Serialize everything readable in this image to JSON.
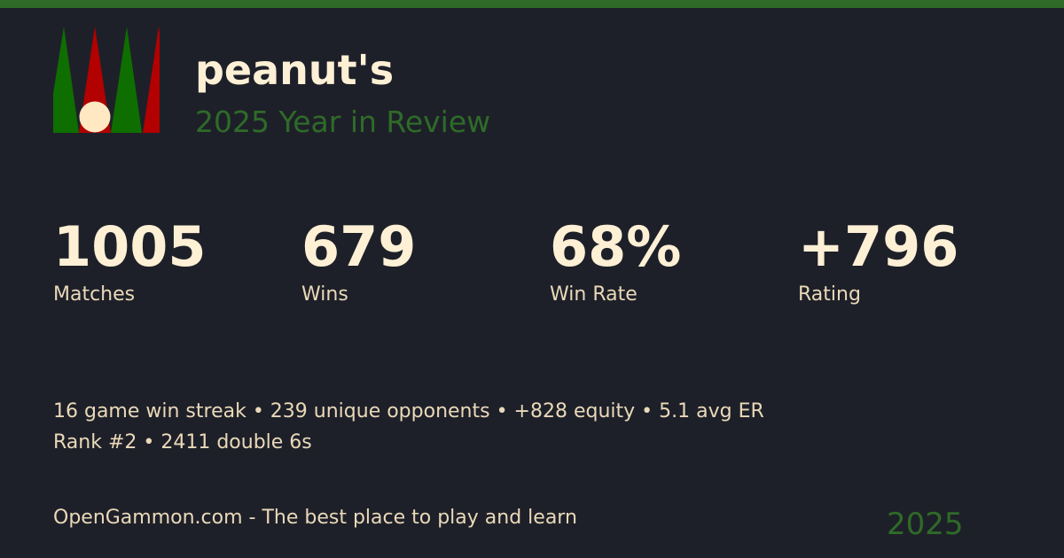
{
  "colors": {
    "accent_green": "#2e6b28",
    "background": "#1e2029",
    "text": "#fdf0d5",
    "logo_green": "#0f6e00",
    "logo_red": "#b30000",
    "checker": "#ffe8c2"
  },
  "logo": {
    "icon": "backgammon-board-icon"
  },
  "header": {
    "name": "peanut's",
    "subtitle": "2025 Year in Review"
  },
  "stats": [
    {
      "value": "1005",
      "label": "Matches"
    },
    {
      "value": "679",
      "label": "Wins"
    },
    {
      "value": "68%",
      "label": "Win Rate"
    },
    {
      "value": "+796",
      "label": "Rating"
    }
  ],
  "highlights": [
    "16 game win streak • 239 unique opponents • +828 equity • 5.1 avg ER",
    "Rank #2 • 2411 double 6s"
  ],
  "footer": {
    "tagline": "OpenGammon.com - The best place to play and learn",
    "year": "2025"
  }
}
